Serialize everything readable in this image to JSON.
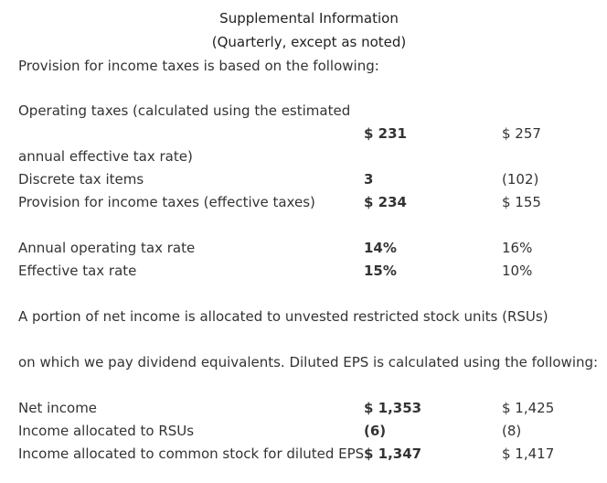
{
  "header": {
    "title": "Supplemental Information",
    "subtitle": "(Quarterly, except as noted)"
  },
  "intro": "Provision for income taxes is based on the following:",
  "tax_table": {
    "operating_taxes_label_1": "Operating taxes (calculated using the estimated",
    "operating_taxes_val_1": "$ 231",
    "operating_taxes_val_2": "$  257",
    "operating_taxes_label_2": "annual effective tax rate)",
    "rows": [
      {
        "label": "Discrete tax items",
        "col1": "3",
        "col2": "(102)"
      },
      {
        "label": "Provision for income taxes (effective taxes)",
        "col1": "$ 234",
        "col2": "$  155"
      }
    ]
  },
  "rate_table": {
    "rows": [
      {
        "label": "Annual operating tax rate",
        "col1": "14%",
        "col2": "16%"
      },
      {
        "label": "Effective tax rate",
        "col1": "15%",
        "col2": "10%"
      }
    ]
  },
  "eps_text": {
    "line1": "A portion of net income is allocated to unvested restricted stock units (RSUs)",
    "line2": "on which we pay dividend equivalents. Diluted EPS is calculated using the following:"
  },
  "eps_table": {
    "rows": [
      {
        "label": "Net income",
        "col1": "$ 1,353",
        "col2": "$  1,425"
      },
      {
        "label": "Income allocated to RSUs",
        "col1": "(6)",
        "col2": "(8)"
      },
      {
        "label": "Income allocated to common stock for diluted EPS",
        "col1": "$ 1,347",
        "col2": "$  1,417"
      }
    ]
  }
}
